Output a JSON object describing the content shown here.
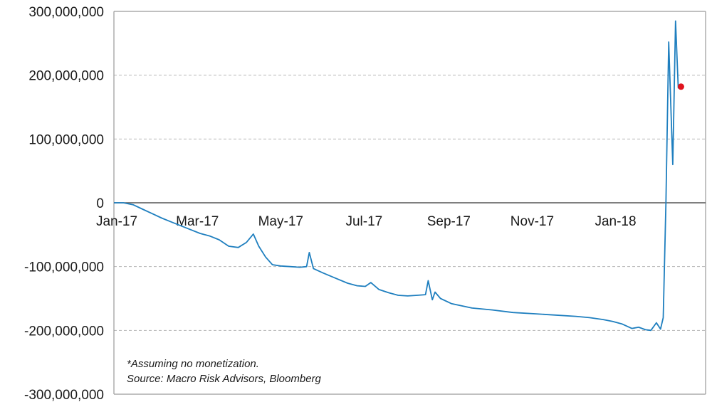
{
  "chart_data": {
    "type": "line",
    "ylim": [
      -300000000,
      300000000
    ],
    "y_ticks": [
      {
        "value": 300000000,
        "label": "300,000,000"
      },
      {
        "value": 200000000,
        "label": "200,000,000"
      },
      {
        "value": 100000000,
        "label": "100,000,000"
      },
      {
        "value": 0,
        "label": "0"
      },
      {
        "value": -100000000,
        "label": "-100,000,000"
      },
      {
        "value": -200000000,
        "label": "-200,000,000"
      },
      {
        "value": -300000000,
        "label": "-300,000,000"
      }
    ],
    "xlim": [
      "2017-01-01",
      "2018-03-10"
    ],
    "x_ticks": [
      {
        "date": "2017-01-01",
        "label": "Jan-17"
      },
      {
        "date": "2017-03-01",
        "label": "Mar-17"
      },
      {
        "date": "2017-05-01",
        "label": "May-17"
      },
      {
        "date": "2017-07-01",
        "label": "Jul-17"
      },
      {
        "date": "2017-09-01",
        "label": "Sep-17"
      },
      {
        "date": "2017-11-01",
        "label": "Nov-17"
      },
      {
        "date": "2018-01-01",
        "label": "Jan-18"
      }
    ],
    "grid": "horizontal-dashed",
    "line_color": "#1f7fbf",
    "marker_color": "#e0141e",
    "series": [
      {
        "x": [
          "2017-01-01",
          "2017-01-08",
          "2017-01-15",
          "2017-01-22",
          "2017-01-29",
          "2017-02-05",
          "2017-02-12",
          "2017-02-19",
          "2017-02-26",
          "2017-03-05",
          "2017-03-12",
          "2017-03-19",
          "2017-03-26",
          "2017-04-02",
          "2017-04-08",
          "2017-04-13",
          "2017-04-17",
          "2017-04-22",
          "2017-04-27",
          "2017-05-03",
          "2017-05-10",
          "2017-05-17",
          "2017-05-22",
          "2017-05-24",
          "2017-05-27",
          "2017-06-03",
          "2017-06-12",
          "2017-06-21",
          "2017-06-28",
          "2017-07-04",
          "2017-07-08",
          "2017-07-14",
          "2017-07-21",
          "2017-07-28",
          "2017-08-04",
          "2017-08-11",
          "2017-08-17",
          "2017-08-19",
          "2017-08-22",
          "2017-08-24",
          "2017-08-28",
          "2017-09-05",
          "2017-09-20",
          "2017-10-05",
          "2017-10-20",
          "2017-11-05",
          "2017-11-20",
          "2017-12-05",
          "2017-12-15",
          "2017-12-25",
          "2018-01-01",
          "2018-01-08",
          "2018-01-15",
          "2018-01-20",
          "2018-01-25",
          "2018-01-29",
          "2018-02-02",
          "2018-02-05",
          "2018-02-07",
          "2018-02-09",
          "2018-02-11",
          "2018-02-14",
          "2018-02-16",
          "2018-02-18",
          "2018-02-20"
        ],
        "y": [
          0,
          0,
          -3000000,
          -10000000,
          -17000000,
          -24000000,
          -30000000,
          -36000000,
          -42000000,
          -48000000,
          -52000000,
          -58000000,
          -68000000,
          -70000000,
          -62000000,
          -49000000,
          -68000000,
          -85000000,
          -97000000,
          -99000000,
          -100000000,
          -101000000,
          -100000000,
          -78000000,
          -103000000,
          -110000000,
          -118000000,
          -126000000,
          -130000000,
          -131000000,
          -125000000,
          -136000000,
          -141000000,
          -145000000,
          -146000000,
          -145000000,
          -144000000,
          -122000000,
          -152000000,
          -140000000,
          -150000000,
          -158000000,
          -165000000,
          -168000000,
          -172000000,
          -174000000,
          -176000000,
          -178000000,
          -180000000,
          -183000000,
          -186000000,
          -190000000,
          -197000000,
          -195000000,
          -199000000,
          -200000000,
          -188000000,
          -198000000,
          -180000000,
          0,
          252000000,
          60000000,
          285000000,
          180000000,
          182000000
        ]
      }
    ],
    "marker": {
      "date": "2018-02-20",
      "value": 182000000
    },
    "annotations": [
      "*Assuming no monetization.",
      "Source: Macro Risk Advisors, Bloomberg"
    ]
  }
}
